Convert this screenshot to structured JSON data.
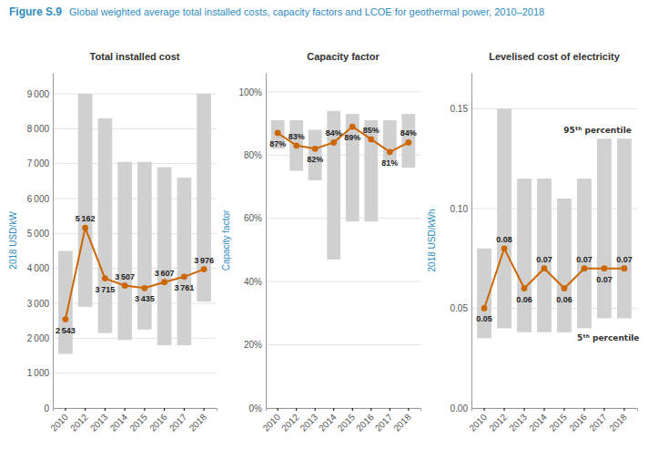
{
  "title": "Figure S.9",
  "subtitle": "Global weighted average total installed costs, capacity factors and LCOE for geothermal power, 2010–2018",
  "chart_data": [
    {
      "type": "bar",
      "title": "Total installed cost",
      "ylabel": "2018 USD/kW",
      "categories": [
        "2010",
        "2012",
        "2013",
        "2014",
        "2015",
        "2016",
        "2017",
        "2018"
      ],
      "series": [
        {
          "type": "bar",
          "color": "#d0d0d0",
          "low": [
            1550,
            2900,
            2150,
            1950,
            2250,
            1800,
            1800,
            3050
          ],
          "high": [
            4500,
            9000,
            8300,
            7050,
            7050,
            6900,
            6600,
            9000
          ]
        },
        {
          "type": "line",
          "color": "#cc6600",
          "marker": "circle",
          "values": [
            2543,
            5162,
            3715,
            3507,
            3435,
            3607,
            3761,
            3976
          ],
          "value_labels": [
            "2 543",
            "5 162",
            "3 715",
            "3 507",
            "3 435",
            "3 607",
            "3 761",
            "3 976"
          ]
        }
      ],
      "ylim": [
        0,
        9600
      ],
      "yticks": [
        0,
        {
          "value": 1000,
          "label": "1 000"
        },
        {
          "value": 2000,
          "label": "2 000"
        },
        {
          "value": 3000,
          "label": "3 000"
        },
        {
          "value": 4000,
          "label": "4 000"
        },
        {
          "value": 5000,
          "label": "5 000"
        },
        {
          "value": 6000,
          "label": "6 000"
        },
        {
          "value": 7000,
          "label": "7 000"
        },
        {
          "value": 8000,
          "label": "8 000"
        },
        {
          "value": 9000,
          "label": "9 000"
        }
      ],
      "grid": true,
      "data_labels": true
    },
    {
      "type": "bar",
      "title": "Capacity factor",
      "ylabel": "Capacity factor",
      "categories": [
        "2010",
        "2012",
        "2013",
        "2014",
        "2015",
        "2016",
        "2017",
        "2018"
      ],
      "series": [
        {
          "type": "bar",
          "color": "#d0d0d0",
          "low": [
            82,
            75,
            72,
            47,
            59,
            59,
            78,
            76
          ],
          "high": [
            91,
            91,
            88,
            94,
            93,
            91,
            91,
            93
          ]
        },
        {
          "type": "line",
          "color": "#cc6600",
          "marker": "circle",
          "values": [
            87,
            83,
            82,
            84,
            89,
            85,
            81,
            84
          ],
          "value_labels": [
            "87%",
            "83%",
            "82%",
            "84%",
            "89%",
            "85%",
            "81%",
            "84%"
          ]
        }
      ],
      "ylim": [
        0,
        106
      ],
      "yticks": [
        {
          "value": 0,
          "label": "0%"
        },
        {
          "value": 20,
          "label": "20%"
        },
        {
          "value": 40,
          "label": "40%"
        },
        {
          "value": 60,
          "label": "60%"
        },
        {
          "value": 80,
          "label": "80%"
        },
        {
          "value": 100,
          "label": "100%"
        }
      ],
      "grid": true,
      "data_labels": true
    },
    {
      "type": "bar",
      "title": "Levelised cost of electricity",
      "ylabel": "2018 USD/kWh",
      "categories": [
        "2010",
        "2012",
        "2013",
        "2014",
        "2015",
        "2016",
        "2017",
        "2018"
      ],
      "series": [
        {
          "type": "bar",
          "color": "#d0d0d0",
          "low": [
            0.035,
            0.04,
            0.038,
            0.038,
            0.038,
            0.04,
            0.045,
            0.045
          ],
          "high": [
            0.08,
            0.15,
            0.115,
            0.115,
            0.105,
            0.115,
            0.135,
            0.135
          ]
        },
        {
          "type": "line",
          "color": "#cc6600",
          "marker": "circle",
          "values": [
            0.05,
            0.08,
            0.06,
            0.07,
            0.06,
            0.07,
            0.07,
            0.07
          ]
        }
      ],
      "ylim": [
        0,
        0.168
      ],
      "yticks": [
        {
          "value": 0,
          "label": "0.00"
        },
        0.05,
        {
          "value": 0.1,
          "label": "0.10"
        },
        0.15
      ],
      "grid": true,
      "data_labels": true,
      "annotations": [
        "95ᵗʰ percentile",
        "5ᵗʰ percentile"
      ]
    }
  ]
}
